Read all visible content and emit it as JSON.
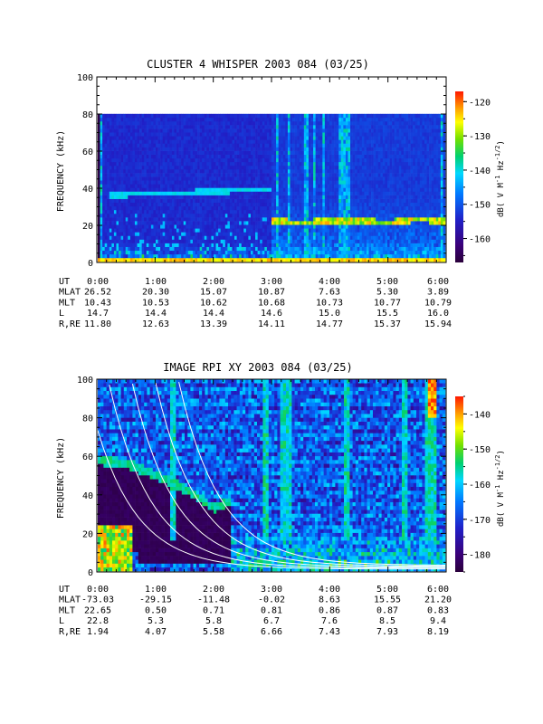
{
  "chart_data": [
    {
      "type": "heatmap",
      "title": "CLUSTER 4 WHISPER 2003 084 (03/25)",
      "ylabel": "FREQUENCY (kHz)",
      "ylim": [
        0,
        100
      ],
      "yticks": [
        "0",
        "20",
        "40",
        "60",
        "80",
        "100"
      ],
      "xlim_hours": [
        0,
        6
      ],
      "colorbar": {
        "label": "dB( V M⁻¹ Hz⁻¹ᐟ²)",
        "label_text": "dB( V M",
        "range": [
          -167,
          -117
        ],
        "ticks": [
          "-120",
          "-130",
          "-140",
          "-150",
          "-160"
        ]
      },
      "data_top_khz": 80,
      "features": {
        "emission_band_khz": [
          [
            0.3,
            36
          ],
          [
            1.0,
            37
          ],
          [
            2.0,
            38
          ],
          [
            2.9,
            39
          ]
        ],
        "plasma_line_khz": [
          [
            3.0,
            22
          ],
          [
            3.5,
            21
          ],
          [
            4.0,
            22
          ],
          [
            4.5,
            22
          ],
          [
            5.0,
            21
          ],
          [
            5.5,
            23
          ],
          [
            6.0,
            22
          ]
        ],
        "vertical_bursts_hours": [
          0.05,
          3.1,
          3.3,
          3.6,
          3.75,
          3.9,
          4.2,
          4.25,
          4.3,
          4.35,
          5.95
        ]
      },
      "ephemeris": {
        "labels": [
          "UT",
          "MLAT",
          "MLT",
          "L",
          "R,RE"
        ],
        "columns": [
          [
            "0:00",
            "26.52",
            "10.43",
            "14.7",
            "11.80"
          ],
          [
            "1:00",
            "20.30",
            "10.53",
            "14.4",
            "12.63"
          ],
          [
            "2:00",
            "15.07",
            "10.62",
            "14.4",
            "13.39"
          ],
          [
            "3:00",
            "10.87",
            "10.68",
            "14.6",
            "14.11"
          ],
          [
            "4:00",
            "7.63",
            "10.73",
            "15.0",
            "14.77"
          ],
          [
            "5:00",
            "5.30",
            "10.77",
            "15.5",
            "15.37"
          ],
          [
            "6:00",
            "3.89",
            "10.79",
            "16.0",
            "15.94"
          ]
        ]
      }
    },
    {
      "type": "heatmap",
      "title": "IMAGE RPI XY 2003 084 (03/25)",
      "ylabel": "FREQUENCY (kHz)",
      "ylim": [
        0,
        100
      ],
      "yticks": [
        "0",
        "20",
        "40",
        "60",
        "80",
        "100"
      ],
      "xlim_hours": [
        0,
        6
      ],
      "colorbar": {
        "label_text": "dB( V M",
        "range": [
          -185,
          -135
        ],
        "ticks": [
          "-140",
          "-150",
          "-160",
          "-170",
          "-180"
        ]
      },
      "features": {
        "upper_band_khz": [
          [
            0.0,
            58
          ],
          [
            0.5,
            56
          ],
          [
            1.0,
            50
          ],
          [
            1.5,
            43
          ],
          [
            2.0,
            33
          ],
          [
            2.25,
            36
          ]
        ],
        "dark_region_end_hours": 2.3,
        "vertical_bursts_hours": [
          1.3,
          2.9,
          3.2,
          3.3,
          4.3,
          5.3,
          5.7,
          5.75,
          5.8
        ]
      },
      "ephemeris": {
        "labels": [
          "UT",
          "MLAT",
          "MLT",
          "L",
          "R,RE"
        ],
        "columns": [
          [
            "0:00",
            "-73.03",
            "22.65",
            "22.8",
            "1.94"
          ],
          [
            "1:00",
            "-29.15",
            "0.50",
            "5.3",
            "4.07"
          ],
          [
            "2:00",
            "-11.48",
            "0.71",
            "5.8",
            "5.58"
          ],
          [
            "3:00",
            "-0.02",
            "0.81",
            "6.7",
            "6.66"
          ],
          [
            "4:00",
            "8.63",
            "0.86",
            "7.6",
            "7.43"
          ],
          [
            "5:00",
            "15.55",
            "0.87",
            "8.5",
            "7.93"
          ],
          [
            "6:00",
            "21.20",
            "0.83",
            "9.4",
            "8.19"
          ]
        ]
      }
    }
  ]
}
